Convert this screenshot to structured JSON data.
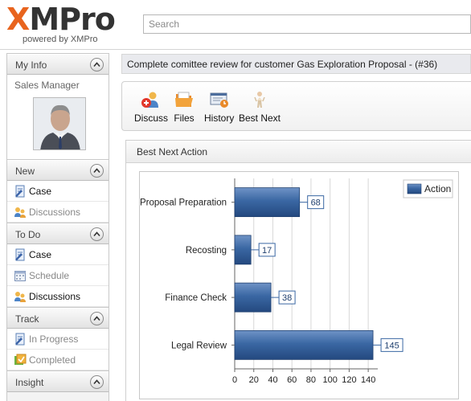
{
  "header": {
    "logo_x": "X",
    "logo_rest": "MPro",
    "powered_by": "powered by XMPro",
    "search_placeholder": "Search"
  },
  "sidebar": {
    "my_info": {
      "title": "My Info",
      "role": "Sales Manager"
    },
    "new": {
      "title": "New",
      "items": [
        {
          "label": "Case",
          "icon": "case-icon",
          "active": true
        },
        {
          "label": "Discussions",
          "icon": "discussions-icon",
          "active": false
        }
      ]
    },
    "todo": {
      "title": "To Do",
      "items": [
        {
          "label": "Case",
          "icon": "case-icon",
          "active": true
        },
        {
          "label": "Schedule",
          "icon": "schedule-icon",
          "active": false
        },
        {
          "label": "Discussions",
          "icon": "discussions-icon",
          "active": true
        }
      ]
    },
    "track": {
      "title": "Track",
      "items": [
        {
          "label": "In Progress",
          "icon": "case-icon",
          "active": false
        },
        {
          "label": "Completed",
          "icon": "completed-icon",
          "active": false
        }
      ]
    },
    "insight": {
      "title": "Insight"
    }
  },
  "task": {
    "title": "Complete comittee review for customer Gas Exploration Proposal - (#36)"
  },
  "toolbar": {
    "discuss": "Discuss",
    "files": "Files",
    "history": "History",
    "best_next": "Best Next"
  },
  "panel": {
    "title": "Best Next Action"
  },
  "colors": {
    "bar": "#3a67a3",
    "accent": "#e8641e"
  },
  "chart_data": {
    "type": "bar",
    "orientation": "horizontal",
    "categories": [
      "Proposal Preparation",
      "Recosting",
      "Finance Check",
      "Legal Review"
    ],
    "series": [
      {
        "name": "Action",
        "values": [
          68,
          17,
          38,
          145
        ]
      }
    ],
    "xlim": [
      0,
      150
    ],
    "xticks": [
      0,
      20,
      40,
      60,
      80,
      100,
      120,
      140
    ],
    "grid": true,
    "legend": "top-right"
  }
}
